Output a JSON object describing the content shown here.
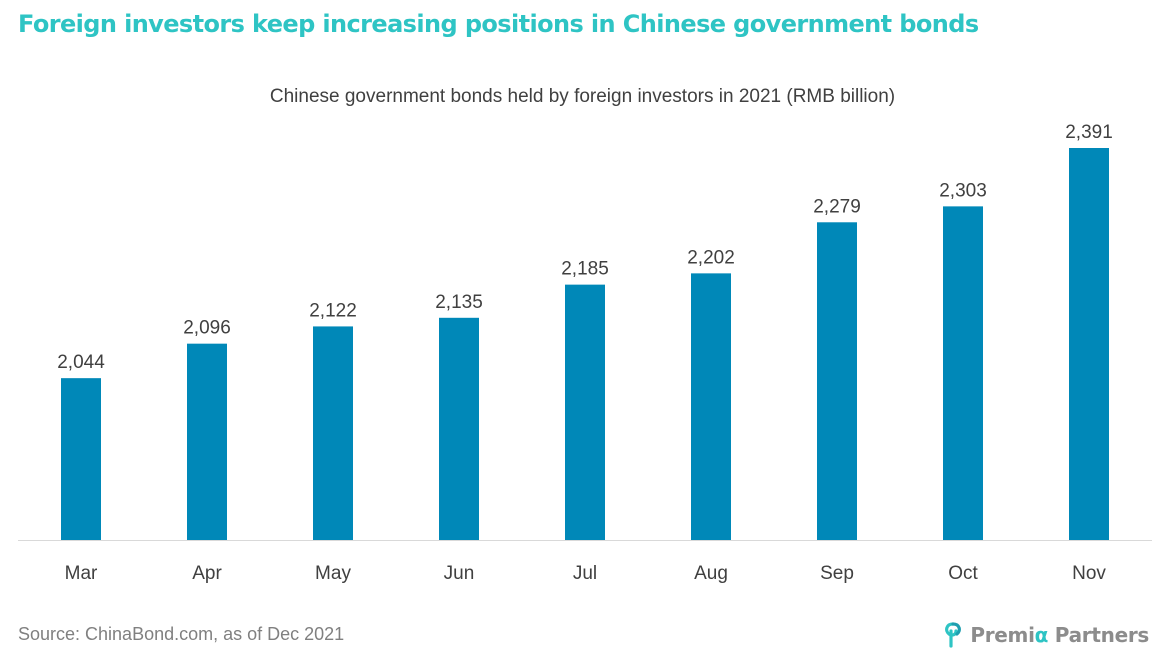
{
  "headline": "Foreign investors keep increasing positions in Chinese government bonds",
  "source": "Source: ChinaBond.com, as of Dec 2021",
  "brand": {
    "name_before": "Premi",
    "name_alpha": "α",
    "name_after": " Partners",
    "mark_icon": "premia-partners-logo-icon",
    "colors": {
      "accent": "#2ec4c4",
      "text": "#8c8c8c"
    }
  },
  "chart_data": {
    "type": "bar",
    "title": "Chinese government bonds held by foreign investors in 2021 (RMB billion)",
    "xlabel": "",
    "ylabel": "",
    "categories": [
      "Mar",
      "Apr",
      "May",
      "Jun",
      "Jul",
      "Aug",
      "Sep",
      "Oct",
      "Nov"
    ],
    "values": [
      2044,
      2096,
      2122,
      2135,
      2185,
      2202,
      2279,
      2303,
      2391
    ],
    "value_labels": [
      "2,044",
      "2,096",
      "2,122",
      "2,135",
      "2,185",
      "2,202",
      "2,279",
      "2,303",
      "2,391"
    ],
    "ylim": [
      1800,
      2400
    ],
    "grid": false,
    "legend": "none",
    "colors": {
      "bar": "#0088b8",
      "axis": "#d9d9d9",
      "label": "#404040",
      "tick": "#404040"
    }
  }
}
